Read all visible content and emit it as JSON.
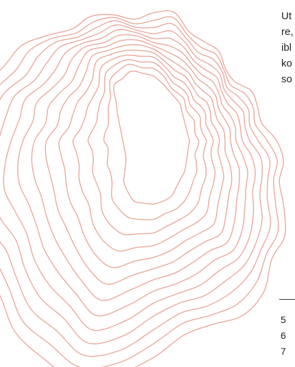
{
  "illustration": {
    "stroke_color": "#e9a99b",
    "icon": "topographic-contour-lines"
  },
  "text_lines": [
    "Ut",
    "re,",
    "ibl",
    "ko",
    "so"
  ],
  "page_numbers": [
    "5",
    "6",
    "7"
  ]
}
